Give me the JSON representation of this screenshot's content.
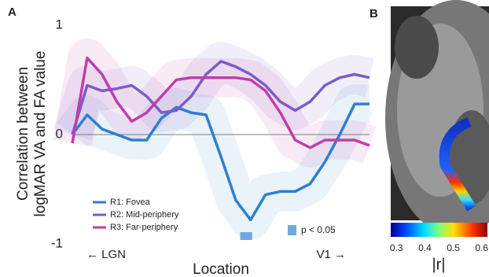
{
  "chart_data": [
    {
      "type": "line",
      "panel_label": "A",
      "y_label": [
        "Correlation between",
        "logMAR VA and FA value"
      ],
      "x_label": "Location",
      "annotations": [
        "← LGN",
        "V1 →"
      ],
      "x": [
        0,
        1,
        2,
        3,
        4,
        5,
        6,
        7,
        8,
        9,
        10,
        11,
        12,
        13,
        14,
        15,
        16,
        17,
        18,
        19,
        20
      ],
      "xlim": [
        0,
        20
      ],
      "ylim": [
        -1,
        1
      ],
      "yticks": [
        -1,
        0,
        1
      ],
      "legend": "lower left",
      "series": [
        {
          "name": "R1: Fovea",
          "color": "#2f7fd0",
          "values": [
            0.0,
            0.18,
            0.05,
            0.0,
            -0.05,
            -0.05,
            0.15,
            0.25,
            0.2,
            0.18,
            -0.2,
            -0.6,
            -0.78,
            -0.55,
            -0.52,
            -0.52,
            -0.45,
            -0.25,
            0.0,
            0.28,
            0.28
          ]
        },
        {
          "name": "R2: Mid-periphery",
          "color": "#7a5cc8",
          "values": [
            0.0,
            0.45,
            0.4,
            0.42,
            0.45,
            0.35,
            0.2,
            0.22,
            0.35,
            0.55,
            0.67,
            0.62,
            0.55,
            0.45,
            0.3,
            0.22,
            0.3,
            0.45,
            0.52,
            0.55,
            0.52
          ]
        },
        {
          "name": "R3: Far-periphery",
          "color": "#c03fa8",
          "values": [
            -0.08,
            0.7,
            0.55,
            0.3,
            0.12,
            0.2,
            0.35,
            0.5,
            0.52,
            0.52,
            0.52,
            0.52,
            0.5,
            0.4,
            0.2,
            -0.05,
            -0.12,
            -0.05,
            -0.05,
            -0.05,
            -0.1
          ]
        }
      ],
      "significance": {
        "label": "p < 0.05",
        "color": "#6fa8dc",
        "x": [
          11.3,
          12.1
        ]
      }
    },
    {
      "type": "colorbar",
      "panel_label": "B",
      "label": "|r|",
      "xlim": [
        0.28,
        0.62
      ],
      "xticks": [
        0.3,
        0.4,
        0.5,
        0.6
      ]
    }
  ]
}
